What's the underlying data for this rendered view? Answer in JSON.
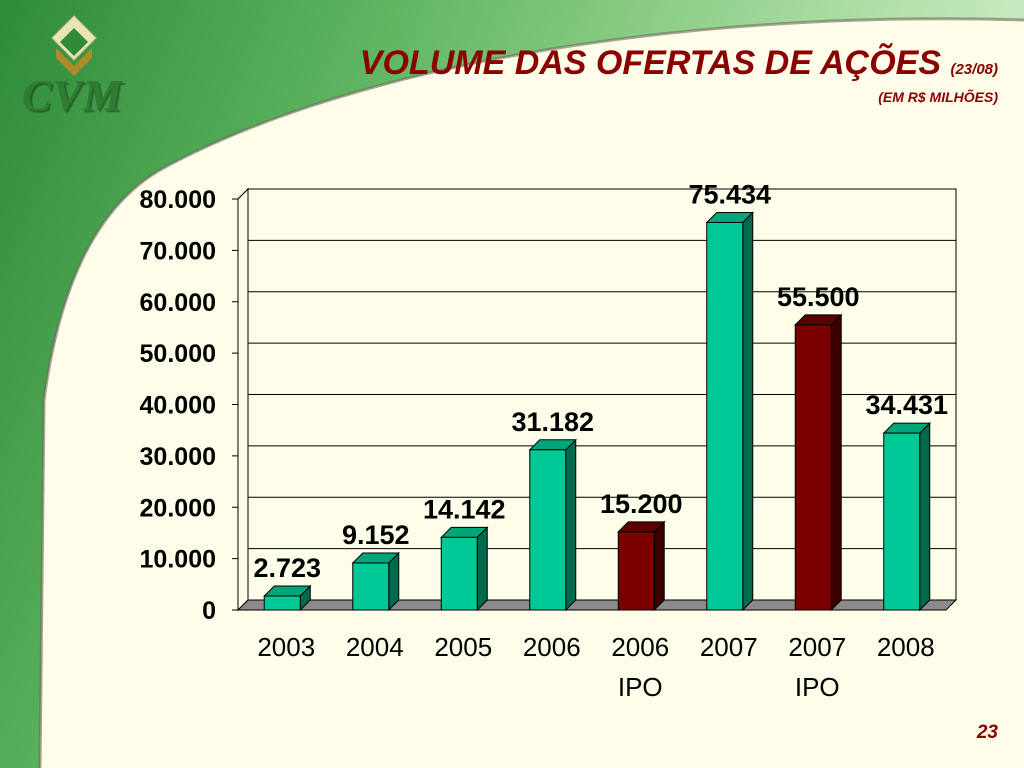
{
  "header": {
    "logo_text": "CVM",
    "title": "VOLUME DAS OFERTAS DE AÇÕES",
    "title_date": "(23/08)",
    "subtitle": "(EM R$ MILHÕES)"
  },
  "page_number": "23",
  "colors": {
    "bar_green": "#00c896",
    "bar_red": "#7a0000",
    "title": "#8b0000",
    "background": "#fdfde9",
    "swoosh_dark": "#2e8b3a",
    "swoosh_light": "#a8dca0"
  },
  "chart_data": {
    "type": "bar",
    "title": "VOLUME DAS OFERTAS DE AÇÕES (23/08)",
    "subtitle": "(EM R$ MILHÕES)",
    "categories": [
      "2003",
      "2004",
      "2005",
      "2006",
      "2006\nIPO",
      "2007",
      "2007\nIPO",
      "2008"
    ],
    "values": [
      2723,
      9152,
      14142,
      31182,
      15200,
      75434,
      55500,
      34431
    ],
    "value_labels": [
      "2.723",
      "9.152",
      "14.142",
      "31.182",
      "15.200",
      "75.434",
      "55.500",
      "34.431"
    ],
    "bar_colors": [
      "green",
      "green",
      "green",
      "green",
      "red",
      "green",
      "red",
      "green"
    ],
    "ylim": [
      0,
      80000
    ],
    "yticks": [
      0,
      10000,
      20000,
      30000,
      40000,
      50000,
      60000,
      70000,
      80000
    ],
    "ytick_labels": [
      "0",
      "10.000",
      "20.000",
      "30.000",
      "40.000",
      "50.000",
      "60.000",
      "70.000",
      "80.000"
    ],
    "grid": true,
    "legend": "none"
  }
}
